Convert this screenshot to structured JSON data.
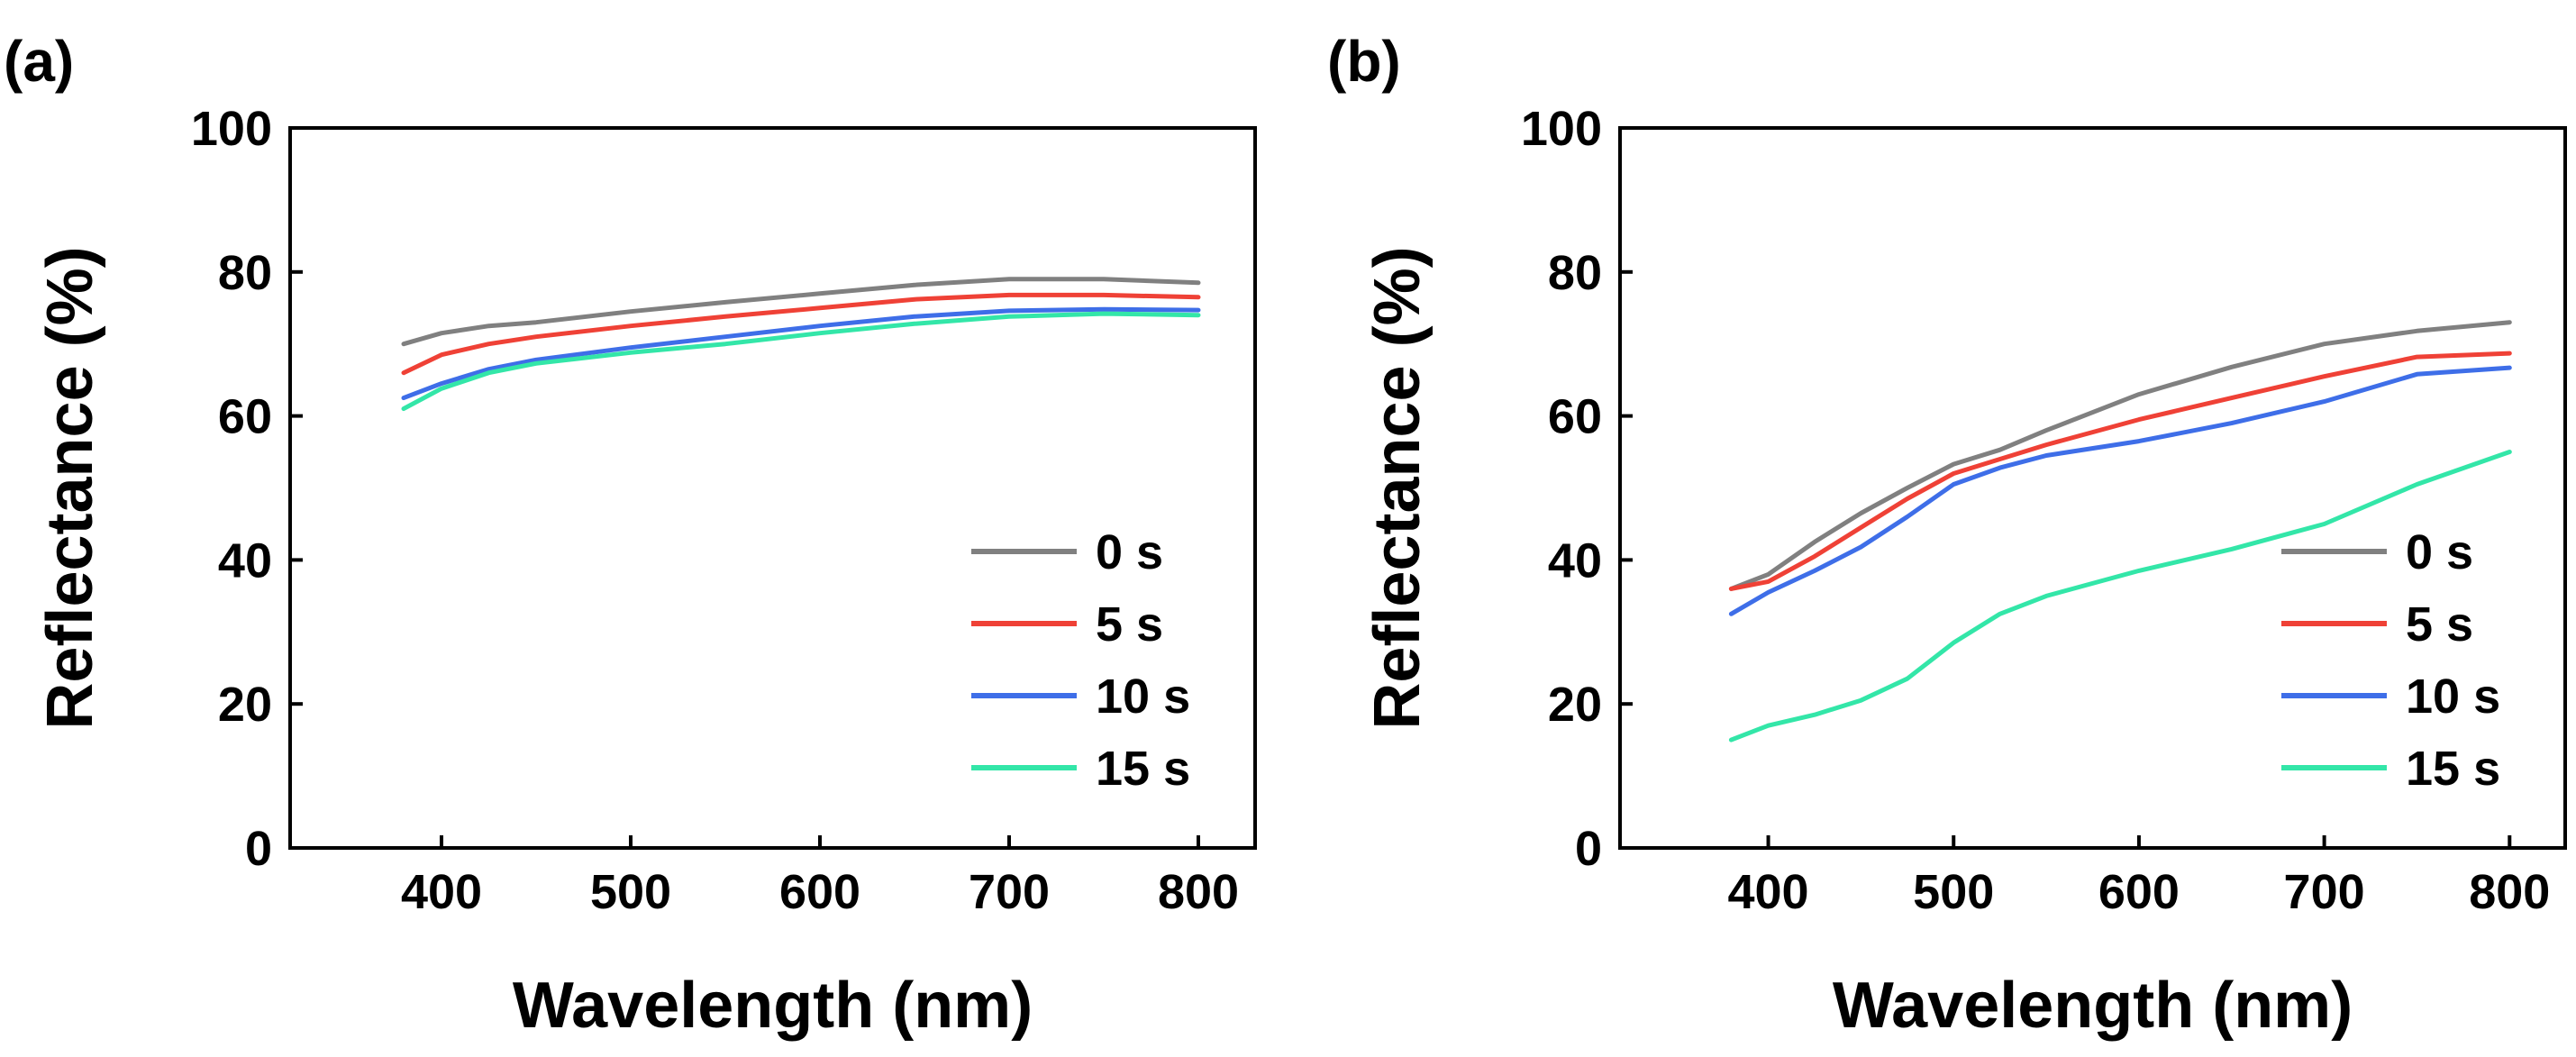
{
  "figure": {
    "panel_labels": [
      "(a)",
      "(b)"
    ]
  },
  "chart_data": [
    {
      "type": "line",
      "panel": "(a)",
      "xlabel": "Wavelength (nm)",
      "ylabel": "Reflectance (%)",
      "xlim": [
        320,
        830
      ],
      "ylim": [
        0,
        100
      ],
      "xticks": [
        400,
        500,
        600,
        700,
        800
      ],
      "yticks": [
        0,
        20,
        40,
        60,
        80,
        100
      ],
      "legend_position": "bottom-right",
      "x": [
        380,
        400,
        425,
        450,
        500,
        550,
        600,
        650,
        700,
        750,
        800
      ],
      "series": [
        {
          "name": "0 s",
          "color": "#808080",
          "values": [
            70,
            71.5,
            72.5,
            73,
            74.5,
            75.8,
            77,
            78.2,
            79,
            79,
            78.5
          ]
        },
        {
          "name": "5 s",
          "color": "#ef4136",
          "values": [
            66,
            68.5,
            70,
            71,
            72.5,
            73.8,
            75,
            76.2,
            76.8,
            76.8,
            76.5
          ]
        },
        {
          "name": "10 s",
          "color": "#3e6ee8",
          "values": [
            62.5,
            64.5,
            66.5,
            67.8,
            69.5,
            71,
            72.5,
            73.8,
            74.6,
            74.8,
            74.7
          ]
        },
        {
          "name": "15 s",
          "color": "#33e6a8",
          "values": [
            61,
            63.8,
            66,
            67.3,
            68.8,
            70,
            71.5,
            72.8,
            73.8,
            74.2,
            74
          ]
        }
      ]
    },
    {
      "type": "line",
      "panel": "(b)",
      "xlabel": "Wavelength (nm)",
      "ylabel": "Reflectance (%)",
      "xlim": [
        320,
        830
      ],
      "ylim": [
        0,
        100
      ],
      "xticks": [
        400,
        500,
        600,
        700,
        800
      ],
      "yticks": [
        0,
        20,
        40,
        60,
        80,
        100
      ],
      "legend_position": "bottom-right",
      "x": [
        380,
        400,
        425,
        450,
        475,
        500,
        525,
        550,
        600,
        650,
        700,
        750,
        800
      ],
      "series": [
        {
          "name": "0 s",
          "color": "#808080",
          "values": [
            36,
            38,
            42.5,
            46.5,
            50,
            53.3,
            55.3,
            58,
            63,
            66.8,
            70,
            71.8,
            73
          ]
        },
        {
          "name": "5 s",
          "color": "#ef4136",
          "values": [
            36,
            37,
            40.5,
            44.5,
            48.5,
            52,
            54,
            56,
            59.5,
            62.5,
            65.5,
            68.2,
            68.7
          ]
        },
        {
          "name": "10 s",
          "color": "#3e6ee8",
          "values": [
            32.5,
            35.5,
            38.5,
            41.8,
            46,
            50.5,
            52.8,
            54.5,
            56.5,
            59,
            62,
            65.8,
            66.7
          ]
        },
        {
          "name": "15 s",
          "color": "#33e6a8",
          "values": [
            15,
            17,
            18.5,
            20.5,
            23.5,
            28.5,
            32.5,
            35,
            38.5,
            41.5,
            45,
            50.5,
            55
          ]
        }
      ]
    }
  ]
}
